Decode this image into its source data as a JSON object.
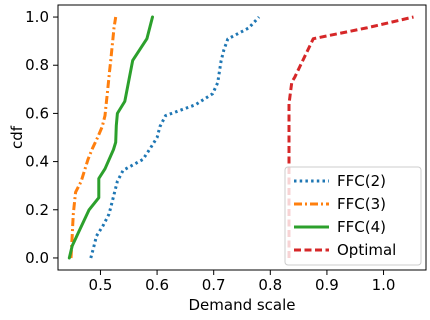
{
  "chart_data": {
    "type": "line",
    "xlabel": "Demand scale",
    "ylabel": "cdf",
    "xlim": [
      0.425,
      1.075
    ],
    "ylim": [
      -0.05,
      1.05
    ],
    "x_ticks": [
      0.5,
      0.6,
      0.7,
      0.8,
      0.9,
      1.0
    ],
    "x_tick_labels": [
      "0.5",
      "0.6",
      "0.7",
      "0.8",
      "0.9",
      "1.0"
    ],
    "y_ticks": [
      0.0,
      0.2,
      0.4,
      0.6,
      0.8,
      1.0
    ],
    "y_tick_labels": [
      "0.0",
      "0.2",
      "0.4",
      "0.6",
      "0.8",
      "1.0"
    ],
    "grid": false,
    "legend_position": "lower-right",
    "series": [
      {
        "name": "FFC(2)",
        "color": "#1f77b4",
        "dash": "dotted",
        "points": [
          [
            0.483,
            0.0
          ],
          [
            0.488,
            0.045
          ],
          [
            0.493,
            0.091
          ],
          [
            0.505,
            0.136
          ],
          [
            0.515,
            0.182
          ],
          [
            0.52,
            0.227
          ],
          [
            0.525,
            0.273
          ],
          [
            0.53,
            0.318
          ],
          [
            0.54,
            0.364
          ],
          [
            0.575,
            0.409
          ],
          [
            0.588,
            0.455
          ],
          [
            0.6,
            0.5
          ],
          [
            0.605,
            0.545
          ],
          [
            0.615,
            0.591
          ],
          [
            0.668,
            0.636
          ],
          [
            0.698,
            0.682
          ],
          [
            0.707,
            0.727
          ],
          [
            0.71,
            0.773
          ],
          [
            0.713,
            0.818
          ],
          [
            0.718,
            0.864
          ],
          [
            0.725,
            0.909
          ],
          [
            0.762,
            0.955
          ],
          [
            0.78,
            1.0
          ]
        ]
      },
      {
        "name": "FFC(3)",
        "color": "#ff7f0e",
        "dash": "dashdot",
        "points": [
          [
            0.448,
            0.0
          ],
          [
            0.449,
            0.045
          ],
          [
            0.45,
            0.091
          ],
          [
            0.451,
            0.136
          ],
          [
            0.452,
            0.182
          ],
          [
            0.454,
            0.227
          ],
          [
            0.456,
            0.273
          ],
          [
            0.466,
            0.318
          ],
          [
            0.472,
            0.364
          ],
          [
            0.478,
            0.409
          ],
          [
            0.486,
            0.455
          ],
          [
            0.495,
            0.5
          ],
          [
            0.503,
            0.545
          ],
          [
            0.508,
            0.591
          ],
          [
            0.51,
            0.636
          ],
          [
            0.512,
            0.682
          ],
          [
            0.514,
            0.727
          ],
          [
            0.516,
            0.773
          ],
          [
            0.518,
            0.818
          ],
          [
            0.52,
            0.864
          ],
          [
            0.522,
            0.909
          ],
          [
            0.524,
            0.955
          ],
          [
            0.527,
            1.0
          ]
        ]
      },
      {
        "name": "FFC(4)",
        "color": "#2ca02c",
        "dash": "solid",
        "points": [
          [
            0.445,
            0.0
          ],
          [
            0.45,
            0.05
          ],
          [
            0.46,
            0.1
          ],
          [
            0.48,
            0.2
          ],
          [
            0.497,
            0.25
          ],
          [
            0.497,
            0.33
          ],
          [
            0.508,
            0.37
          ],
          [
            0.523,
            0.45
          ],
          [
            0.527,
            0.48
          ],
          [
            0.528,
            0.55
          ],
          [
            0.53,
            0.6
          ],
          [
            0.543,
            0.65
          ],
          [
            0.557,
            0.82
          ],
          [
            0.582,
            0.91
          ],
          [
            0.592,
            1.0
          ]
        ]
      },
      {
        "name": "Optimal",
        "color": "#d62728",
        "dash": "dashed",
        "points": [
          [
            0.833,
            0.0
          ],
          [
            0.833,
            0.64
          ],
          [
            0.838,
            0.73
          ],
          [
            0.843,
            0.75
          ],
          [
            0.876,
            0.91
          ],
          [
            0.97,
            0.955
          ],
          [
            1.053,
            1.0
          ]
        ]
      }
    ]
  }
}
